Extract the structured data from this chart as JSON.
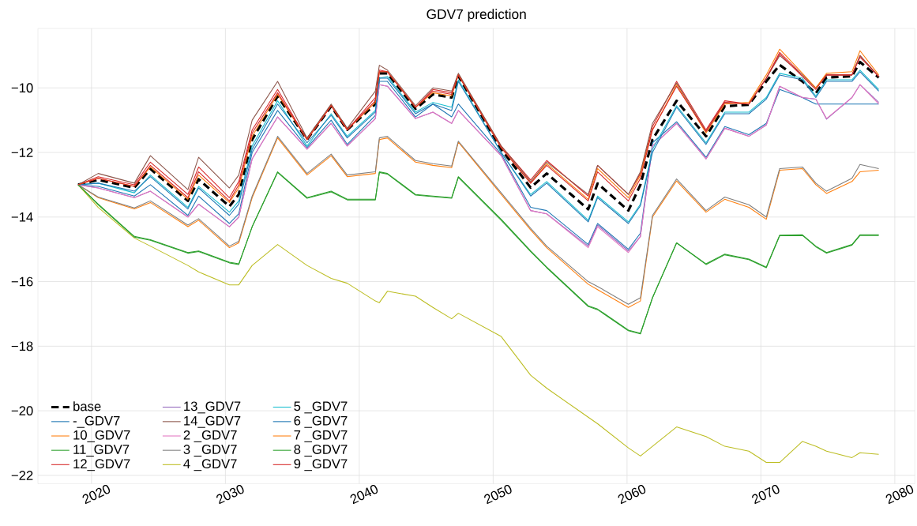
{
  "chart_data": {
    "type": "line",
    "title": "GDV7 prediction",
    "x": [
      2019,
      2020.5,
      2023.2,
      2024.4,
      2027.2,
      2028,
      2030.3,
      2031,
      2032,
      2033.9,
      2036.1,
      2037.9,
      2039.1,
      2041.2,
      2041.5,
      2042.1,
      2044.2,
      2045.5,
      2046.9,
      2047.4,
      2050.6,
      2052.8,
      2054,
      2057.1,
      2057.8,
      2060.1,
      2061,
      2061.9,
      2063.7,
      2065.9,
      2067.3,
      2069.1,
      2070.4,
      2071.4,
      2073.1,
      2074.1,
      2074.9,
      2076.8,
      2077.4,
      2078.8
    ],
    "xlim": [
      2016,
      2081.5
    ],
    "ylim": [
      -22.26,
      -8.16
    ],
    "xticks": [
      2020,
      2030,
      2040,
      2050,
      2060,
      2070,
      2080
    ],
    "yticks": [
      {
        "value": -22,
        "label": "−22"
      },
      {
        "value": -20,
        "label": "−20"
      },
      {
        "value": -18,
        "label": "−18"
      },
      {
        "value": -16,
        "label": "−16"
      },
      {
        "value": -14,
        "label": "−14"
      },
      {
        "value": -12,
        "label": "−12"
      },
      {
        "value": -10,
        "label": "−10"
      }
    ],
    "grid": true,
    "legend": "bottom left",
    "series": [
      {
        "name": "base",
        "color": "#000000",
        "line_style": "dashed",
        "values": [
          -13.0,
          -12.85,
          -13.09,
          -12.51,
          -13.5,
          -12.83,
          -13.67,
          -13.3,
          -11.6,
          -10.26,
          -11.6,
          -10.57,
          -11.3,
          -10.5,
          -9.55,
          -9.55,
          -10.65,
          -10.2,
          -10.3,
          -9.63,
          -11.9,
          -13.09,
          -12.65,
          -13.76,
          -12.96,
          -13.8,
          -13.0,
          -11.6,
          -10.4,
          -11.5,
          -10.57,
          -10.52,
          -9.8,
          -9.29,
          -9.8,
          -10.17,
          -9.68,
          -9.64,
          -9.2,
          -9.68
        ]
      },
      {
        "name": "-_GDV7",
        "color": "#1f77b4",
        "values": [
          -13.0,
          -13.05,
          -13.35,
          -13.0,
          -13.95,
          -13.35,
          -14.2,
          -13.9,
          -12.0,
          -10.7,
          -11.85,
          -11.0,
          -11.75,
          -10.85,
          -9.8,
          -9.8,
          -10.9,
          -10.5,
          -10.9,
          -10.5,
          -12.05,
          -13.7,
          -13.8,
          -14.85,
          -14.2,
          -15.0,
          -14.5,
          -11.7,
          -11.05,
          -12.15,
          -11.2,
          -11.45,
          -11.1,
          -10.05,
          -10.3,
          -10.5,
          -10.5,
          -10.5,
          -10.5,
          -10.5
        ]
      },
      {
        "name": "10_GDV7",
        "color": "#ff7f0e",
        "values": [
          -13.0,
          -13.4,
          -13.75,
          -13.55,
          -14.3,
          -14.1,
          -14.95,
          -14.8,
          -13.4,
          -11.55,
          -12.7,
          -12.1,
          -12.75,
          -12.65,
          -11.6,
          -11.55,
          -12.3,
          -12.4,
          -12.47,
          -11.68,
          -13.3,
          -14.4,
          -14.95,
          -16.08,
          -16.25,
          -16.8,
          -16.6,
          -14.0,
          -12.88,
          -13.85,
          -13.45,
          -13.7,
          -14.07,
          -12.55,
          -12.5,
          -13.0,
          -13.27,
          -12.9,
          -12.6,
          -12.55
        ]
      },
      {
        "name": "11_GDV7",
        "color": "#2ca02c",
        "values": [
          -13.0,
          -13.6,
          -14.6,
          -14.7,
          -15.1,
          -15.05,
          -15.4,
          -15.45,
          -14.3,
          -12.6,
          -13.4,
          -13.2,
          -13.45,
          -13.45,
          -12.6,
          -12.65,
          -13.3,
          -13.35,
          -13.4,
          -12.75,
          -14.07,
          -15.05,
          -15.55,
          -16.75,
          -16.85,
          -17.5,
          -17.6,
          -16.5,
          -14.8,
          -15.45,
          -15.15,
          -15.3,
          -15.55,
          -14.56,
          -14.55,
          -14.9,
          -15.1,
          -14.85,
          -14.55,
          -14.55
        ]
      },
      {
        "name": "12_GDV7",
        "color": "#d62728",
        "values": [
          -13.0,
          -12.75,
          -13.0,
          -12.3,
          -13.3,
          -12.45,
          -13.4,
          -12.9,
          -11.3,
          -10.05,
          -11.6,
          -10.55,
          -11.3,
          -10.3,
          -9.45,
          -9.5,
          -10.6,
          -10.05,
          -10.15,
          -9.6,
          -11.8,
          -12.85,
          -12.25,
          -13.35,
          -12.4,
          -13.3,
          -12.65,
          -11.2,
          -9.8,
          -11.3,
          -10.4,
          -10.5,
          -9.7,
          -8.9,
          -9.6,
          -10.0,
          -9.6,
          -9.6,
          -9.0,
          -9.65
        ]
      },
      {
        "name": "13_GDV7",
        "color": "#9467bd",
        "values": [
          -13.0,
          -13.1,
          -13.4,
          -13.2,
          -14.0,
          -13.6,
          -14.3,
          -14.0,
          -12.2,
          -10.9,
          -11.9,
          -11.1,
          -11.8,
          -10.95,
          -9.9,
          -9.95,
          -10.95,
          -10.75,
          -11.1,
          -10.7,
          -12.1,
          -13.8,
          -13.9,
          -14.9,
          -14.25,
          -15.05,
          -14.6,
          -11.8,
          -11.1,
          -12.2,
          -11.25,
          -11.5,
          -11.15,
          -9.95,
          -10.3,
          -10.35,
          -10.97,
          -10.3,
          -9.9,
          -10.45
        ]
      },
      {
        "name": "14_GDV7",
        "color": "#8c564b",
        "values": [
          -13.0,
          -12.65,
          -12.95,
          -12.1,
          -13.15,
          -12.15,
          -13.1,
          -12.7,
          -11.0,
          -9.8,
          -11.55,
          -10.5,
          -11.25,
          -10.1,
          -9.3,
          -9.45,
          -10.55,
          -10.0,
          -10.1,
          -9.55,
          -11.8,
          -12.9,
          -12.3,
          -13.3,
          -12.4,
          -13.3,
          -12.6,
          -11.1,
          -9.85,
          -11.35,
          -10.45,
          -10.5,
          -9.7,
          -9.0,
          -9.6,
          -10.0,
          -9.6,
          -9.6,
          -9.0,
          -9.65
        ]
      },
      {
        "name": "2 _GDV7",
        "color": "#e377c2",
        "values": [
          -13.0,
          -13.1,
          -13.4,
          -13.2,
          -14.0,
          -13.6,
          -14.3,
          -14.0,
          -12.2,
          -10.9,
          -11.9,
          -11.1,
          -11.8,
          -10.95,
          -9.9,
          -9.95,
          -10.95,
          -10.75,
          -11.1,
          -10.7,
          -12.1,
          -13.8,
          -13.9,
          -14.95,
          -14.3,
          -15.1,
          -14.6,
          -11.8,
          -11.1,
          -12.2,
          -11.25,
          -11.5,
          -11.15,
          -9.95,
          -10.3,
          -10.35,
          -10.95,
          -10.3,
          -9.9,
          -10.5
        ]
      },
      {
        "name": "3 _GDV7",
        "color": "#7f7f7f",
        "values": [
          -13.0,
          -13.38,
          -13.72,
          -13.5,
          -14.25,
          -14.05,
          -14.9,
          -14.75,
          -13.35,
          -11.5,
          -12.65,
          -12.05,
          -12.7,
          -12.6,
          -11.55,
          -11.5,
          -12.25,
          -12.35,
          -12.42,
          -11.65,
          -13.25,
          -14.35,
          -14.9,
          -16.0,
          -16.15,
          -16.7,
          -16.5,
          -13.95,
          -12.82,
          -13.8,
          -13.38,
          -13.62,
          -14.0,
          -12.5,
          -12.45,
          -12.95,
          -13.2,
          -12.8,
          -12.37,
          -12.5
        ]
      },
      {
        "name": "4 _GDV7",
        "color": "#bcbd22",
        "values": [
          -13.0,
          -13.7,
          -14.65,
          -14.9,
          -15.5,
          -15.7,
          -16.1,
          -16.1,
          -15.5,
          -14.85,
          -15.5,
          -15.9,
          -16.05,
          -16.6,
          -16.65,
          -16.3,
          -16.45,
          -16.8,
          -17.15,
          -16.98,
          -17.7,
          -18.9,
          -19.3,
          -20.2,
          -20.4,
          -21.15,
          -21.4,
          -21.1,
          -20.5,
          -20.8,
          -21.1,
          -21.25,
          -21.6,
          -21.6,
          -20.95,
          -21.1,
          -21.25,
          -21.45,
          -21.3,
          -21.35
        ]
      },
      {
        "name": "5 _GDV7",
        "color": "#17becf",
        "values": [
          -13.0,
          -12.95,
          -13.25,
          -12.7,
          -13.7,
          -13.05,
          -13.85,
          -13.5,
          -11.8,
          -10.4,
          -11.8,
          -10.8,
          -11.5,
          -10.7,
          -9.7,
          -9.65,
          -10.75,
          -10.45,
          -10.6,
          -9.75,
          -12.0,
          -13.3,
          -12.9,
          -14.1,
          -13.35,
          -14.15,
          -13.6,
          -11.9,
          -10.55,
          -11.7,
          -10.75,
          -10.75,
          -10.3,
          -9.55,
          -9.7,
          -10.25,
          -9.75,
          -9.75,
          -9.45,
          -10.05
        ]
      },
      {
        "name": "6 _GDV7",
        "color": "#1f77b4",
        "values": [
          -13.0,
          -12.95,
          -13.2,
          -12.75,
          -13.75,
          -13.1,
          -13.95,
          -13.6,
          -11.9,
          -10.5,
          -11.7,
          -10.85,
          -11.55,
          -10.75,
          -9.7,
          -9.7,
          -10.8,
          -10.5,
          -10.7,
          -9.8,
          -12.0,
          -13.35,
          -12.95,
          -14.15,
          -13.4,
          -14.2,
          -13.65,
          -12.0,
          -10.6,
          -11.75,
          -10.8,
          -10.8,
          -10.35,
          -9.6,
          -9.75,
          -10.3,
          -9.8,
          -9.8,
          -9.5,
          -10.1
        ]
      },
      {
        "name": "7 _GDV7",
        "color": "#ff7f0e",
        "values": [
          -13.0,
          -12.8,
          -13.05,
          -12.45,
          -13.45,
          -12.7,
          -13.55,
          -13.1,
          -11.5,
          -10.2,
          -11.6,
          -10.55,
          -11.3,
          -10.45,
          -9.5,
          -9.5,
          -10.6,
          -10.15,
          -10.25,
          -9.6,
          -11.85,
          -12.95,
          -12.35,
          -13.45,
          -12.5,
          -13.4,
          -12.7,
          -11.3,
          -9.9,
          -11.4,
          -10.5,
          -10.45,
          -9.6,
          -8.8,
          -9.55,
          -10.0,
          -9.55,
          -9.5,
          -8.85,
          -9.6
        ]
      },
      {
        "name": "8 _GDV7",
        "color": "#2ca02c",
        "values": [
          -13.0,
          -13.62,
          -14.62,
          -14.72,
          -15.12,
          -15.07,
          -15.42,
          -15.47,
          -14.3,
          -12.62,
          -13.42,
          -13.22,
          -13.47,
          -13.47,
          -12.62,
          -12.67,
          -13.32,
          -13.37,
          -13.42,
          -12.77,
          -14.1,
          -15.07,
          -15.57,
          -16.77,
          -16.87,
          -17.52,
          -17.62,
          -16.5,
          -14.8,
          -15.47,
          -15.17,
          -15.32,
          -15.57,
          -14.58,
          -14.57,
          -14.92,
          -15.12,
          -14.87,
          -14.57,
          -14.57
        ]
      },
      {
        "name": "9 _GDV7",
        "color": "#d62728",
        "values": [
          -13.0,
          -12.8,
          -13.05,
          -12.4,
          -13.4,
          -12.6,
          -13.5,
          -13.0,
          -11.4,
          -10.15,
          -11.6,
          -10.55,
          -11.3,
          -10.4,
          -9.5,
          -9.5,
          -10.6,
          -10.1,
          -10.2,
          -9.6,
          -11.85,
          -12.95,
          -12.4,
          -13.5,
          -12.6,
          -13.5,
          -12.8,
          -11.3,
          -9.95,
          -11.35,
          -10.45,
          -10.5,
          -9.7,
          -8.95,
          -9.65,
          -10.05,
          -9.6,
          -9.6,
          -9.05,
          -9.65
        ]
      }
    ]
  }
}
